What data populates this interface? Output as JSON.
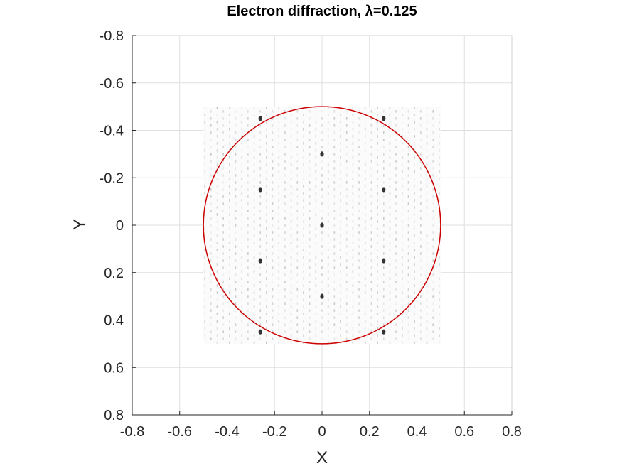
{
  "chart_data": {
    "type": "scatter",
    "title": "Electron diffraction,  λ=0.125",
    "xlabel": "X",
    "ylabel": "Y",
    "xlim": [
      -0.8,
      0.8
    ],
    "ylim": [
      -0.8,
      0.8
    ],
    "y_axis_reversed": true,
    "grid": true,
    "xticks": [
      "-0.8",
      "-0.6",
      "-0.4",
      "-0.2",
      "0",
      "0.2",
      "0.4",
      "0.6",
      "0.8"
    ],
    "yticks": [
      "-0.8",
      "-0.6",
      "-0.4",
      "-0.2",
      "0",
      "0.2",
      "0.4",
      "0.6",
      "0.8"
    ],
    "pattern_extent": [
      -0.5,
      0.5
    ],
    "circle": {
      "cx": 0,
      "cy": 0,
      "r": 0.5,
      "color": "#cc0000"
    },
    "strong_spots": [
      {
        "x": -0.26,
        "y": -0.45
      },
      {
        "x": 0.26,
        "y": -0.45
      },
      {
        "x": 0,
        "y": -0.3
      },
      {
        "x": -0.26,
        "y": -0.15
      },
      {
        "x": 0.26,
        "y": -0.15
      },
      {
        "x": 0,
        "y": 0
      },
      {
        "x": -0.26,
        "y": 0.15
      },
      {
        "x": 0.26,
        "y": 0.15
      },
      {
        "x": 0,
        "y": 0.3
      },
      {
        "x": -0.26,
        "y": 0.45
      },
      {
        "x": 0.26,
        "y": 0.45
      }
    ],
    "spot_color": "#333333"
  }
}
